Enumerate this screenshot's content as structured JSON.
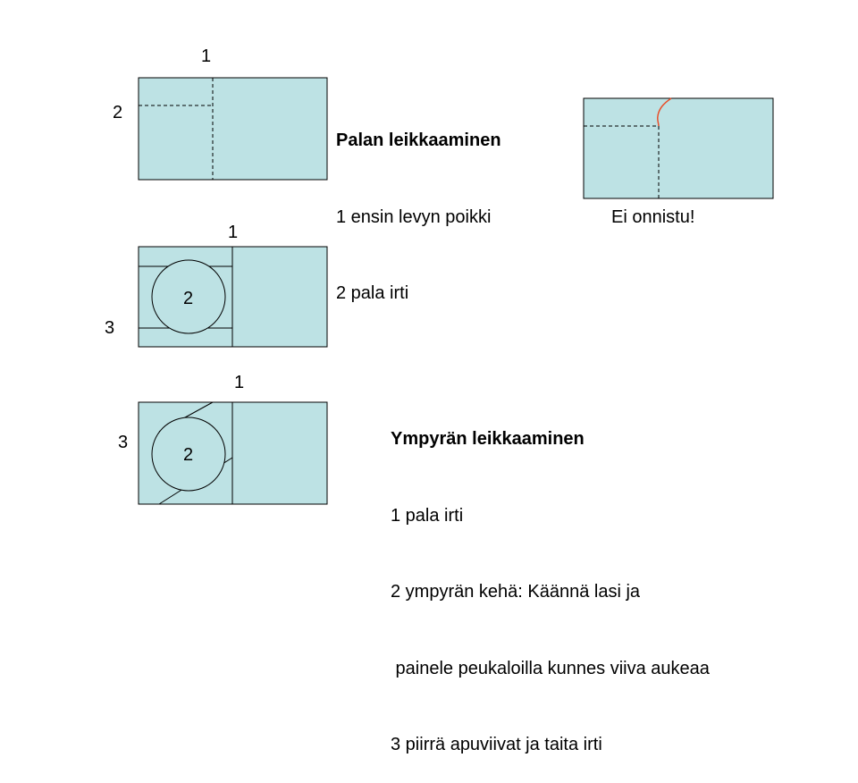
{
  "colors": {
    "panel_fill": "#bde2e4",
    "outline": "#000000",
    "failed_crack": "#e8502b"
  },
  "diagram_cut": {
    "label_top": "1",
    "label_left": "2"
  },
  "cut_instructions": {
    "heading": "Palan leikkaaminen",
    "lines": [
      "1 ensin levyn poikki",
      "2 pala irti"
    ]
  },
  "failed_example": {
    "caption": "Ei onnistu!"
  },
  "diagram_circle_a": {
    "label_top": "1",
    "label_circle": "2",
    "label_left": "3"
  },
  "diagram_circle_b": {
    "label_top": "1",
    "label_circle": "2",
    "label_left": "3"
  },
  "circle_instructions": {
    "heading": "Ympyrän leikkaaminen",
    "lines": [
      "1 pala irti",
      "2 ympyrän kehä: Käännä lasi ja",
      " painele peukaloilla kunnes viiva aukeaa",
      "3 piirrä apuviivat ja taita irti"
    ]
  }
}
